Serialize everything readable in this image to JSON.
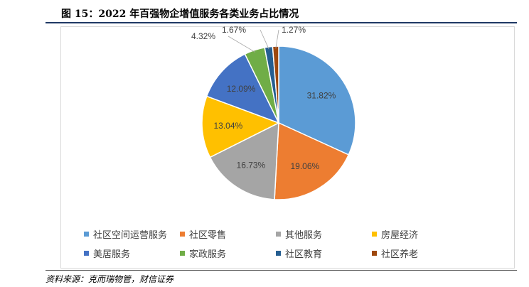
{
  "title": "图 15：2022 年百强物企增值服务各类业务占比情况",
  "source": "资料来源：克而瑞物管，财信证券",
  "chart_data": {
    "type": "pie",
    "title": "",
    "start_angle_deg": 0,
    "direction": "clockwise",
    "slices": [
      {
        "label": "社区空间运营服务",
        "value": 31.82,
        "value_label": "31.82%",
        "color": "#5b9bd5"
      },
      {
        "label": "社区零售",
        "value": 19.06,
        "value_label": "19.06%",
        "color": "#ed7d31"
      },
      {
        "label": "其他服务",
        "value": 16.73,
        "value_label": "16.73%",
        "color": "#a5a5a5"
      },
      {
        "label": "房屋经济",
        "value": 13.04,
        "value_label": "13.04%",
        "color": "#ffc000"
      },
      {
        "label": "美居服务",
        "value": 12.09,
        "value_label": "12.09%",
        "color": "#4472c4"
      },
      {
        "label": "家政服务",
        "value": 4.32,
        "value_label": "4.32%",
        "color": "#70ad47"
      },
      {
        "label": "社区教育",
        "value": 1.67,
        "value_label": "1.67%",
        "color": "#255e91"
      },
      {
        "label": "社区养老",
        "value": 1.27,
        "value_label": "1.27%",
        "color": "#9e480e"
      }
    ],
    "legend_position": "bottom"
  }
}
